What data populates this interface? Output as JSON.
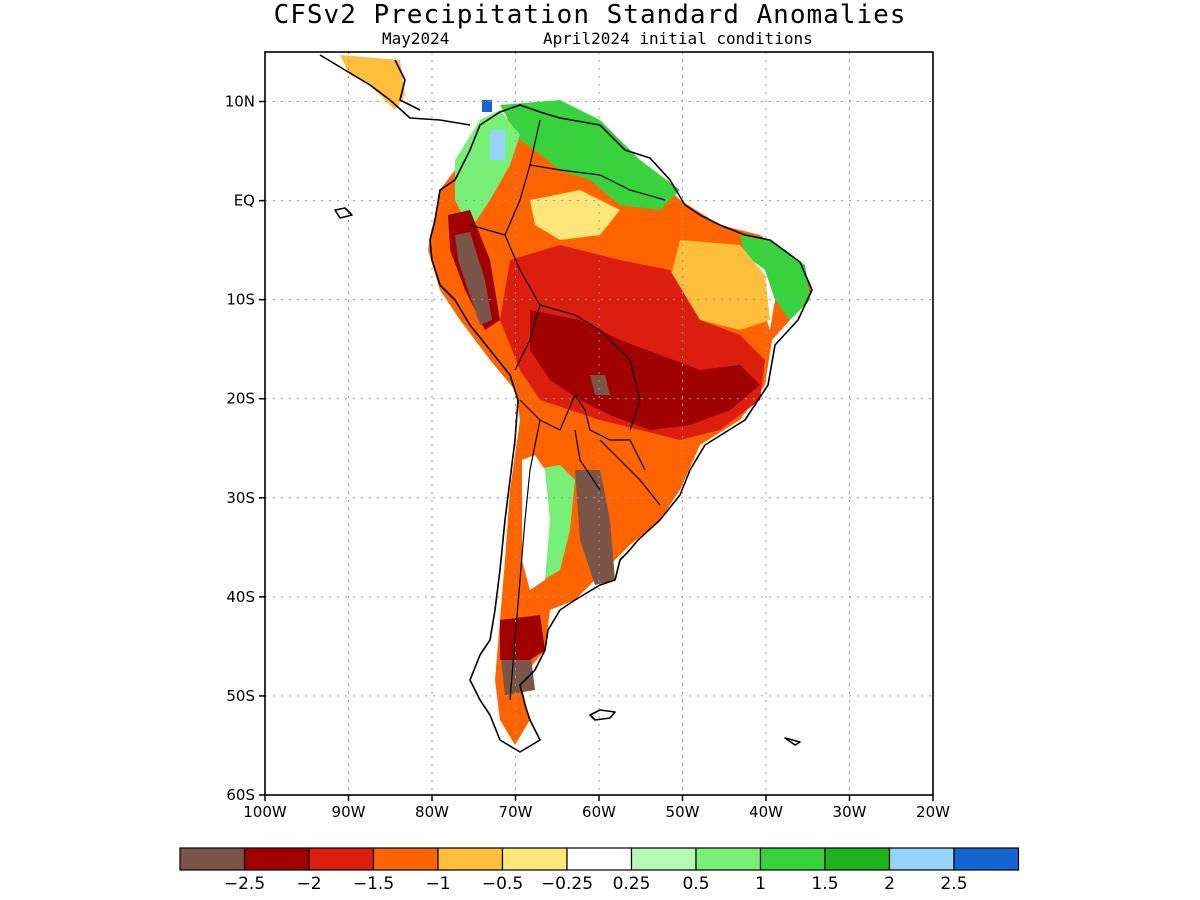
{
  "header": {
    "title": "CFSv2 Precipitation Standard Anomalies",
    "month": "May2024",
    "init": "April2024 initial conditions"
  },
  "map": {
    "lat_ticks": [
      "10N",
      "EQ",
      "10S",
      "20S",
      "30S",
      "40S",
      "50S",
      "60S"
    ],
    "lon_ticks": [
      "100W",
      "90W",
      "80W",
      "70W",
      "60W",
      "50W",
      "40W",
      "30W",
      "20W"
    ],
    "lon_range": [
      -100,
      -20
    ],
    "lat_range": [
      -60,
      15
    ]
  },
  "colorbar": {
    "colors": [
      "#7a5548",
      "#a00000",
      "#dc1e0f",
      "#ff6400",
      "#ffbe3c",
      "#ffe678",
      "#ffffff",
      "#b4fab4",
      "#78f078",
      "#37d23c",
      "#1eb41e",
      "#96d2fa",
      "#1464d2"
    ],
    "labels": [
      "−2.5",
      "−2",
      "−1.5",
      "−1",
      "−0.5",
      "−0.25",
      "0.25",
      "0.5",
      "1",
      "1.5",
      "2",
      "2.5"
    ]
  },
  "legend_colors": {
    "land_outline": "#000000",
    "grid": "#999999"
  }
}
